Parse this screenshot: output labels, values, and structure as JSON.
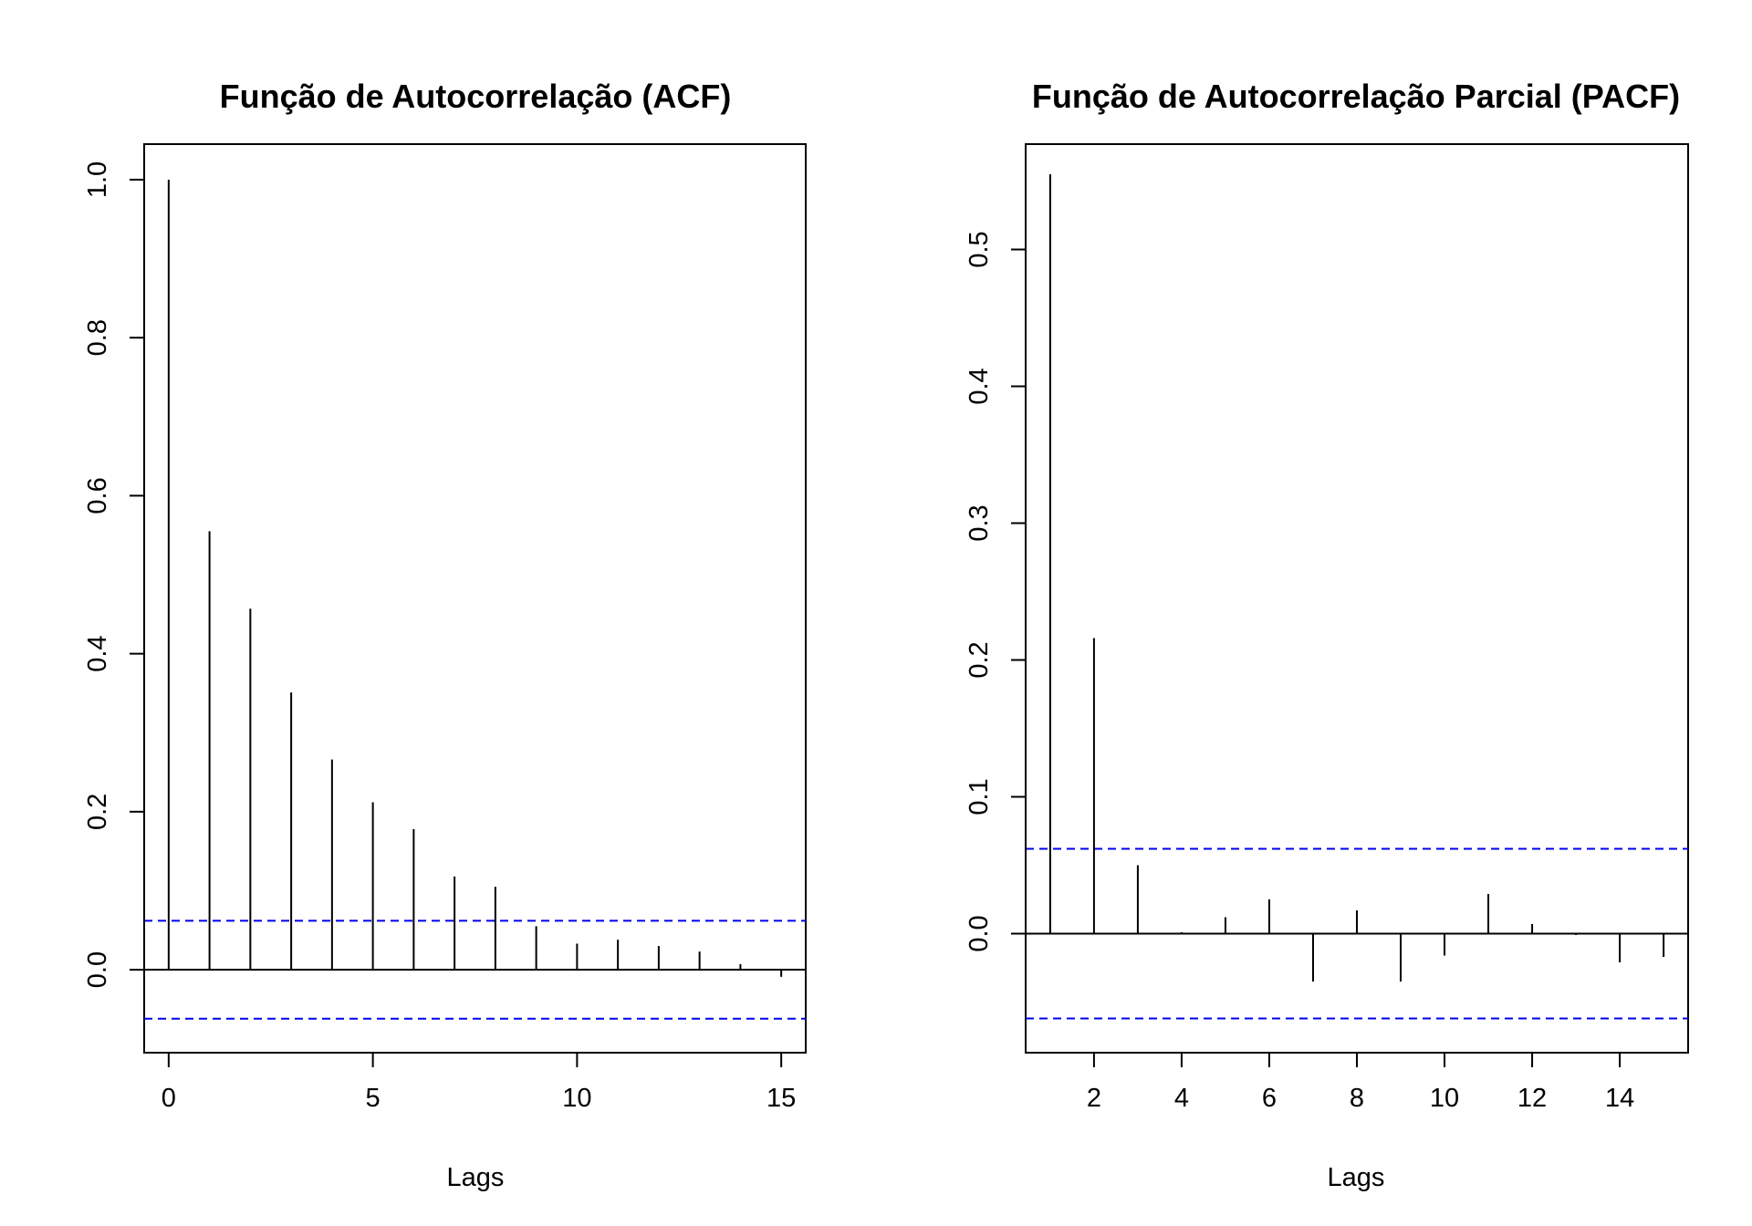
{
  "chart_data": [
    {
      "type": "bar",
      "subtype": "acf-correlogram",
      "title": "Função de Autocorrelação (ACF)",
      "xlabel": "Lags",
      "ylabel": "",
      "xlim": [
        -0.6,
        15.6
      ],
      "ylim": [
        -0.105,
        1.045
      ],
      "x_ticks": [
        0,
        5,
        10,
        15
      ],
      "y_ticks": [
        0.0,
        0.2,
        0.4,
        0.6,
        0.8,
        1.0
      ],
      "y_tick_labels": [
        "0.0",
        "0.2",
        "0.4",
        "0.6",
        "0.8",
        "1.0"
      ],
      "lags": [
        0,
        1,
        2,
        3,
        4,
        5,
        6,
        7,
        8,
        9,
        10,
        11,
        12,
        13,
        14,
        15
      ],
      "values": [
        1.0,
        0.555,
        0.457,
        0.351,
        0.266,
        0.212,
        0.178,
        0.118,
        0.105,
        0.055,
        0.033,
        0.038,
        0.03,
        0.023,
        0.007,
        -0.009
      ],
      "confidence_bounds": [
        0.062,
        -0.062
      ],
      "confidence_color": "#0000ee",
      "grid": false
    },
    {
      "type": "bar",
      "subtype": "pacf-correlogram",
      "title": "Função de Autocorrelação Parcial (PACF)",
      "xlabel": "Lags",
      "ylabel": "",
      "xlim": [
        0.44,
        15.56
      ],
      "ylim": [
        -0.087,
        0.577
      ],
      "x_ticks": [
        2,
        4,
        6,
        8,
        10,
        12,
        14
      ],
      "y_ticks": [
        0.0,
        0.1,
        0.2,
        0.3,
        0.4,
        0.5
      ],
      "y_tick_labels": [
        "0.0",
        "0.1",
        "0.2",
        "0.3",
        "0.4",
        "0.5"
      ],
      "lags": [
        1,
        2,
        3,
        4,
        5,
        6,
        7,
        8,
        9,
        10,
        11,
        12,
        13,
        14,
        15
      ],
      "values": [
        0.555,
        0.216,
        0.05,
        0.001,
        0.012,
        0.025,
        -0.035,
        0.017,
        -0.035,
        -0.016,
        0.029,
        0.007,
        -0.001,
        -0.021,
        -0.017
      ],
      "confidence_bounds": [
        0.062,
        -0.062
      ],
      "confidence_color": "#0000ee",
      "grid": false
    }
  ]
}
